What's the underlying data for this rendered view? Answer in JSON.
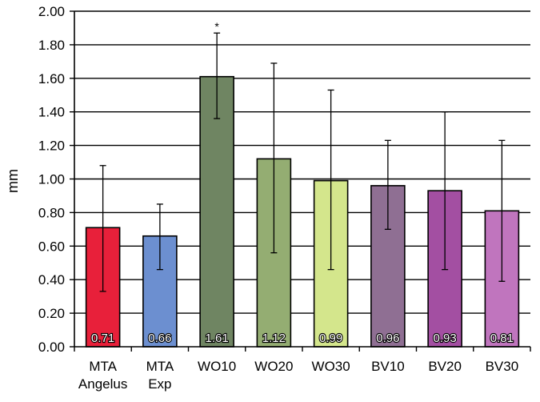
{
  "chart_data": {
    "type": "bar",
    "title": "",
    "xlabel": "",
    "ylabel": "mm",
    "ylim": [
      0,
      2
    ],
    "yticks": [
      "0.00",
      "0.20",
      "0.40",
      "0.60",
      "0.80",
      "1.00",
      "1.20",
      "1.40",
      "1.60",
      "1.80",
      "2.00"
    ],
    "grid": true,
    "categories": [
      [
        "MTA",
        "Angelus"
      ],
      [
        "MTA",
        "Exp"
      ],
      [
        "WO10"
      ],
      [
        "WO20"
      ],
      [
        "WO30"
      ],
      [
        "BV10"
      ],
      [
        "BV20"
      ],
      [
        "BV30"
      ]
    ],
    "values": [
      0.71,
      0.66,
      1.61,
      1.12,
      0.99,
      0.96,
      0.93,
      0.81
    ],
    "value_labels": [
      "0.71",
      "0.66",
      "1.61",
      "1.12",
      "0.99",
      "0.96",
      "0.93",
      "0.81"
    ],
    "error_low": [
      0.33,
      0.46,
      1.36,
      0.56,
      0.46,
      0.7,
      0.46,
      0.39
    ],
    "error_high": [
      1.08,
      0.85,
      1.87,
      1.69,
      1.53,
      1.23,
      1.4,
      1.23
    ],
    "colors": [
      "#e8203a",
      "#6c8fd0",
      "#6f8562",
      "#94ad72",
      "#d4e68c",
      "#8f6f93",
      "#a34fa2",
      "#c075be"
    ],
    "annotations": [
      {
        "category_index": 2,
        "text": "*"
      }
    ]
  }
}
